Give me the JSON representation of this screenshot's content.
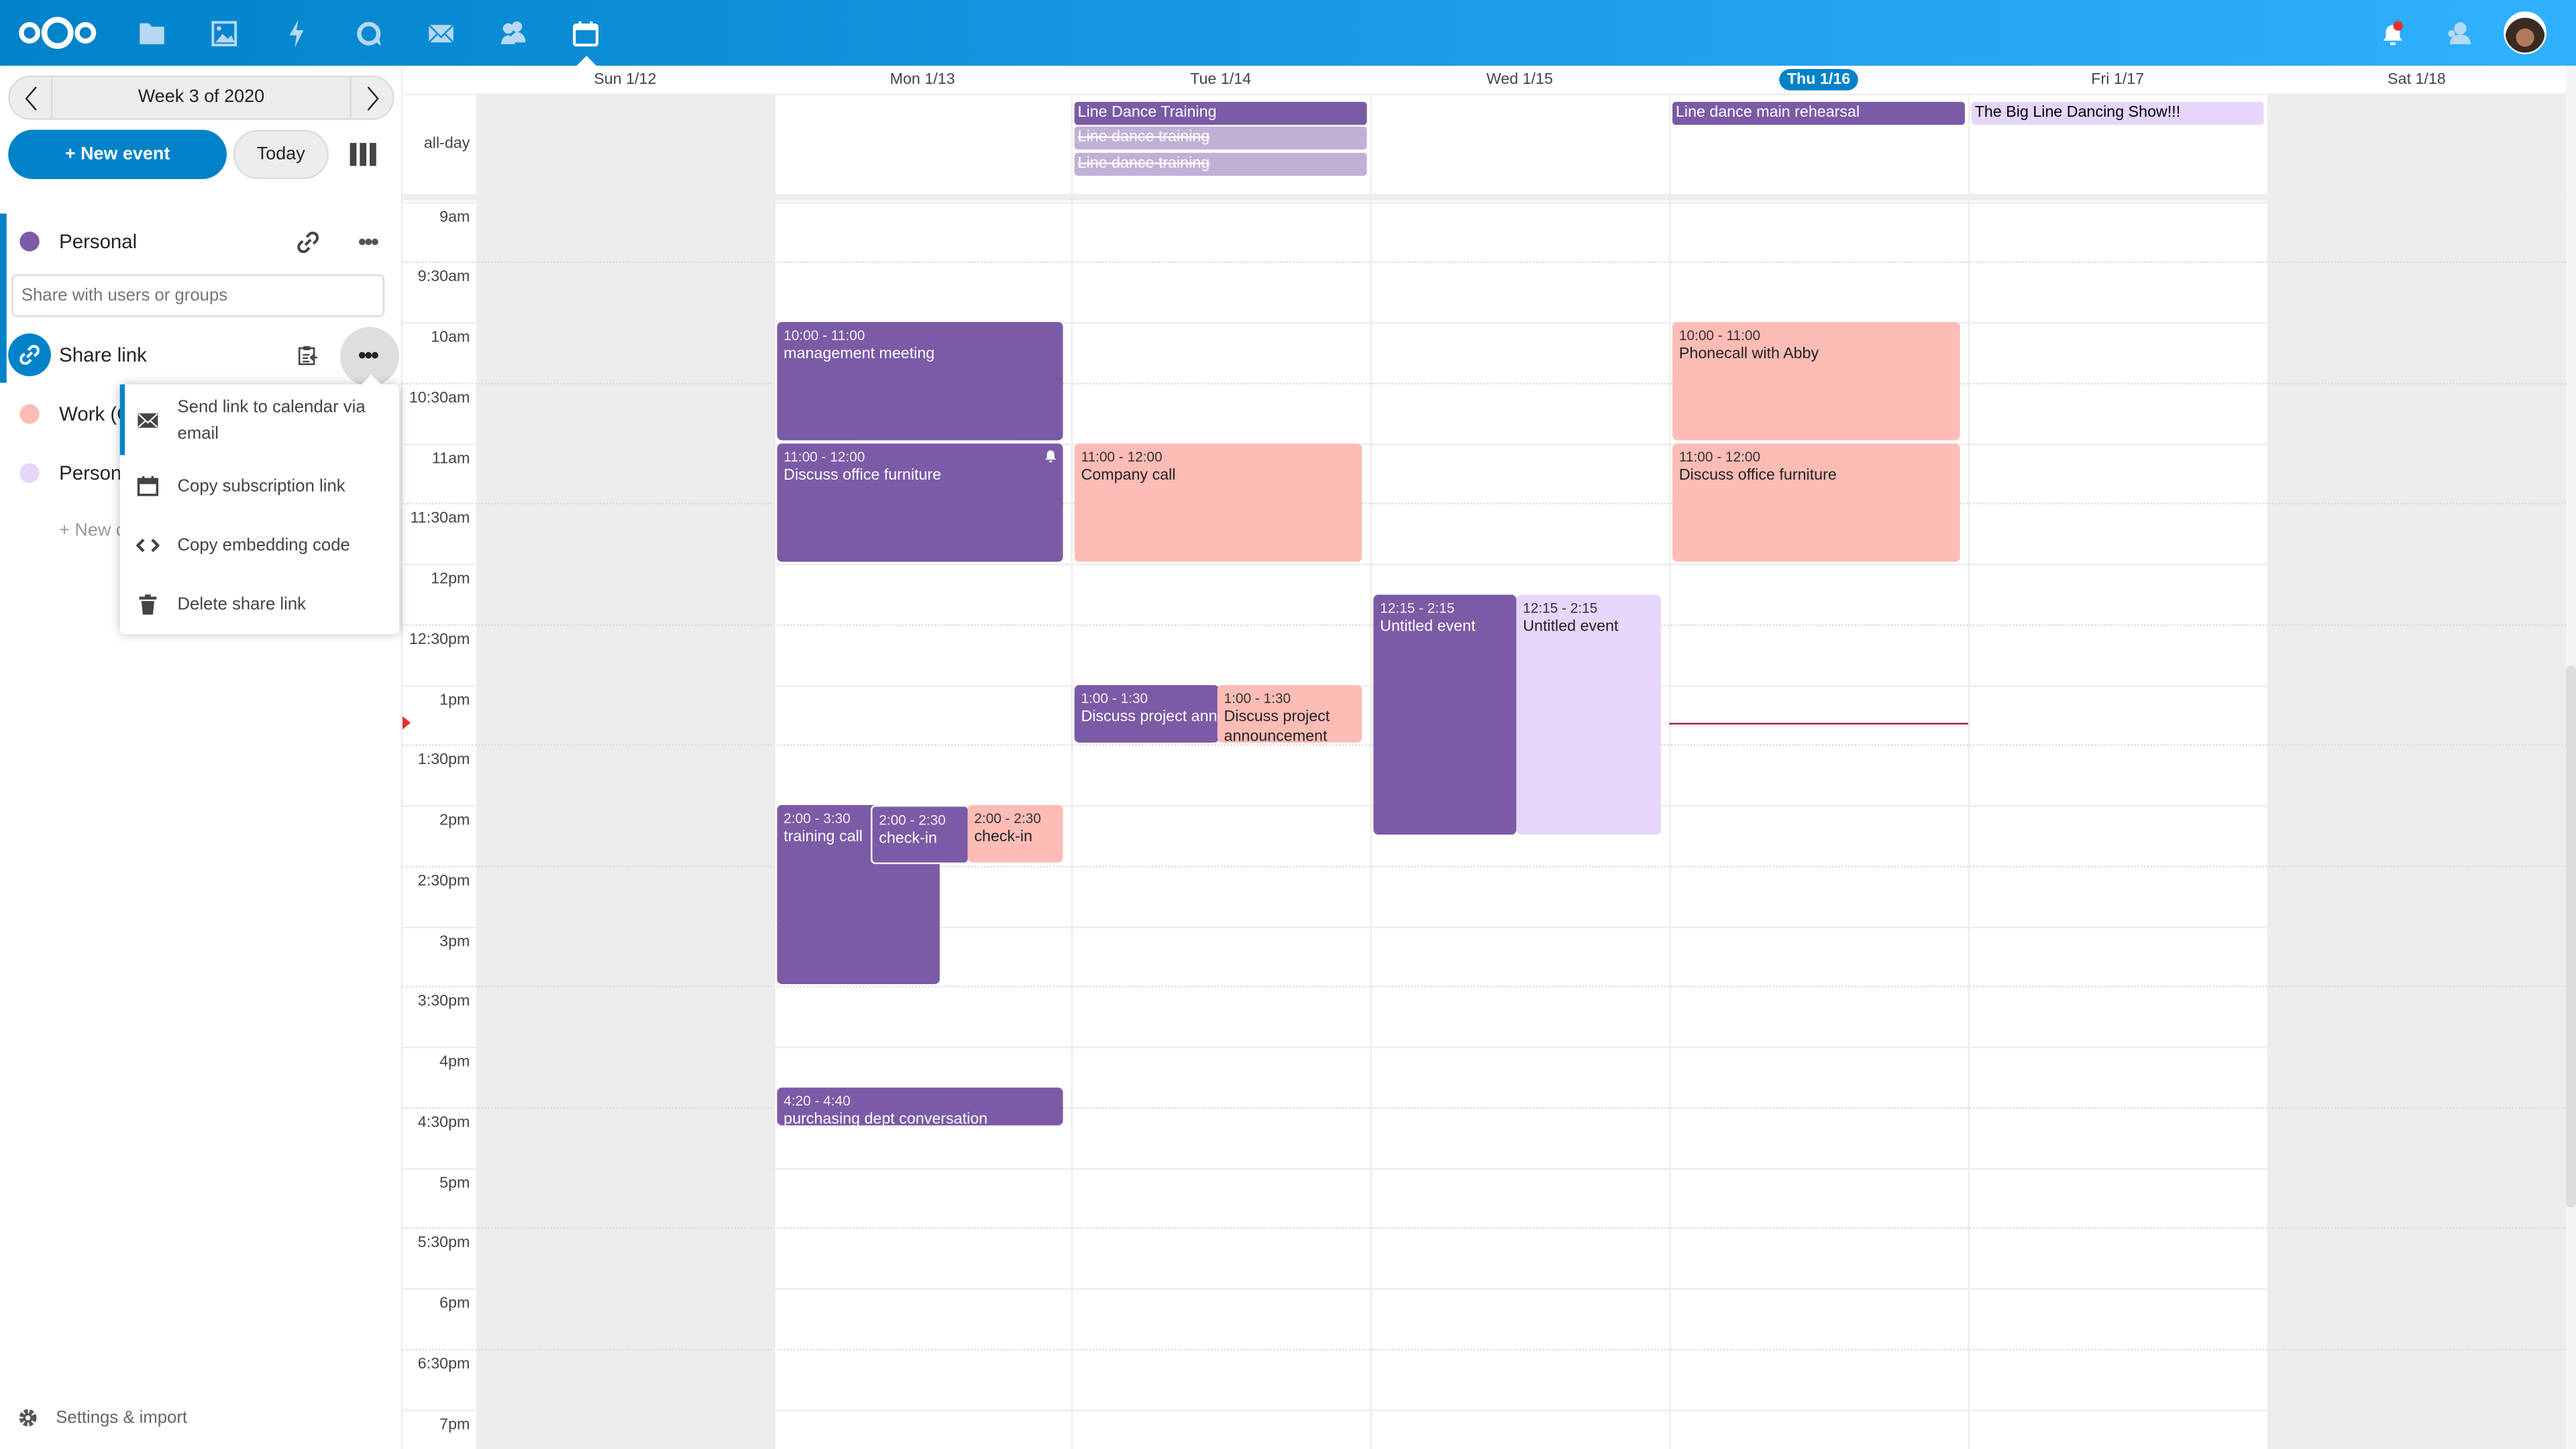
{
  "header": {
    "apps": [
      "files",
      "photos",
      "activity",
      "talk",
      "mail",
      "contacts",
      "calendar"
    ],
    "active_app": "calendar",
    "notification_badge_color": "#e9322d",
    "brand_color": "#0082c9"
  },
  "sidebar": {
    "week_label": "Week 3 of 2020",
    "new_event_label": "+ New event",
    "today_label": "Today",
    "calendars": [
      {
        "name": "Personal",
        "color": "#7b5aa6"
      },
      {
        "name": "Work (C",
        "color": "#fdbcb6"
      },
      {
        "name": "Persona",
        "color": "#e6d6fc"
      }
    ],
    "share_placeholder": "Share with users or groups",
    "share_link_label": "Share link",
    "new_calendar_label": "+ New c",
    "settings_label": "Settings & import",
    "share_menu": [
      {
        "icon": "mail-icon",
        "label": "Send link to calendar via email"
      },
      {
        "icon": "calendar-icon",
        "label": "Copy subscription link"
      },
      {
        "icon": "code-icon",
        "label": "Copy embedding code"
      },
      {
        "icon": "trash-icon",
        "label": "Delete share link"
      }
    ]
  },
  "calendar": {
    "allday_label": "all-day",
    "days": [
      "Sun 1/12",
      "Mon 1/13",
      "Tue 1/14",
      "Wed 1/15",
      "Thu 1/16",
      "Fri 1/17",
      "Sat 1/18"
    ],
    "today_index": 4,
    "time_labels": [
      "9am",
      "9:30am",
      "10am",
      "10:30am",
      "11am",
      "11:30am",
      "12pm",
      "12:30pm",
      "1pm",
      "1:30pm",
      "2pm",
      "2:30pm",
      "3pm",
      "3:30pm",
      "4pm",
      "4:30pm",
      "5pm",
      "5:30pm",
      "6pm",
      "6:30pm",
      "7pm"
    ],
    "allday_events": [
      {
        "day": "Tue 1/14",
        "title": "Line Dance Training"
      },
      {
        "day": "Tue 1/14",
        "title": "Line dance training",
        "cancelled": true
      },
      {
        "day": "Tue 1/14",
        "title": "Line dance training",
        "cancelled": true
      },
      {
        "day": "Thu 1/16",
        "title": "Line dance main rehearsal"
      },
      {
        "day": "Fri 1/17",
        "title": "The Big Line Dancing Show!!!"
      }
    ],
    "events": [
      {
        "day": "Mon 1/13",
        "time": "10:00 - 11:00",
        "title": "management meeting"
      },
      {
        "day": "Mon 1/13",
        "time": "11:00 - 12:00",
        "title": "Discuss office furniture",
        "alarm": true
      },
      {
        "day": "Mon 1/13",
        "time": "2:00 - 3:30",
        "title": "training call"
      },
      {
        "day": "Mon 1/13",
        "time": "2:00 - 2:30",
        "title": "check-in"
      },
      {
        "day": "Mon 1/13",
        "time": "2:00 - 2:30",
        "title": "check-in"
      },
      {
        "day": "Mon 1/13",
        "time": "4:20 - 4:40",
        "title": "purchasing dept conversation"
      },
      {
        "day": "Tue 1/14",
        "time": "11:00 - 12:00",
        "title": "Company call"
      },
      {
        "day": "Tue 1/14",
        "time": "1:00 - 1:30",
        "title": "Discuss project announcement"
      },
      {
        "day": "Tue 1/14",
        "time": "1:00 - 1:30",
        "title": "Discuss project announcement"
      },
      {
        "day": "Wed 1/15",
        "time": "12:15 - 2:15",
        "title": "Untitled event"
      },
      {
        "day": "Wed 1/15",
        "time": "12:15 - 2:15",
        "title": "Untitled event"
      },
      {
        "day": "Thu 1/16",
        "time": "10:00 - 11:00",
        "title": "Phonecall with Abby"
      },
      {
        "day": "Thu 1/16",
        "time": "11:00 - 12:00",
        "title": "Discuss office furniture"
      }
    ],
    "current_time_color": "#e9322d"
  }
}
